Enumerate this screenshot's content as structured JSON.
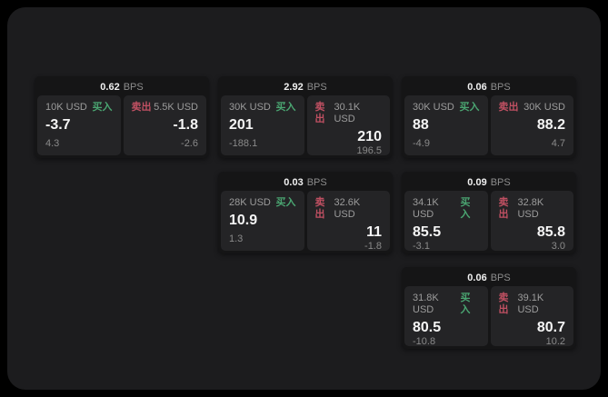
{
  "labels": {
    "buy": "买入",
    "sell": "卖出",
    "bps_unit": "BPS"
  },
  "colors": {
    "buy_green": "#4aa571",
    "sell_red": "#c05062",
    "page_background": "#1c1c1e",
    "card_background": "#151516",
    "panel_background": "#242426"
  },
  "cards": [
    {
      "bps": "0.62",
      "buy": {
        "amount": "10K USD",
        "price": "-3.7",
        "change": "4.3"
      },
      "sell": {
        "amount": "5.5K USD",
        "price": "-1.8",
        "change": "-2.6"
      }
    },
    {
      "bps": "2.92",
      "buy": {
        "amount": "30K USD",
        "price": "201",
        "change": "-188.1"
      },
      "sell": {
        "amount": "30.1K USD",
        "price": "210",
        "change": "196.5"
      }
    },
    {
      "bps": "0.06",
      "buy": {
        "amount": "30K USD",
        "price": "88",
        "change": "-4.9"
      },
      "sell": {
        "amount": "30K USD",
        "price": "88.2",
        "change": "4.7"
      }
    },
    {
      "bps": "0.03",
      "buy": {
        "amount": "28K USD",
        "price": "10.9",
        "change": "1.3"
      },
      "sell": {
        "amount": "32.6K USD",
        "price": "11",
        "change": "-1.8"
      }
    },
    {
      "bps": "0.09",
      "buy": {
        "amount": "34.1K USD",
        "price": "85.5",
        "change": "-3.1"
      },
      "sell": {
        "amount": "32.8K USD",
        "price": "85.8",
        "change": "3.0"
      }
    },
    {
      "bps": "0.06",
      "buy": {
        "amount": "31.8K USD",
        "price": "80.5",
        "change": "-10.8"
      },
      "sell": {
        "amount": "39.1K USD",
        "price": "80.7",
        "change": "10.2"
      }
    }
  ]
}
